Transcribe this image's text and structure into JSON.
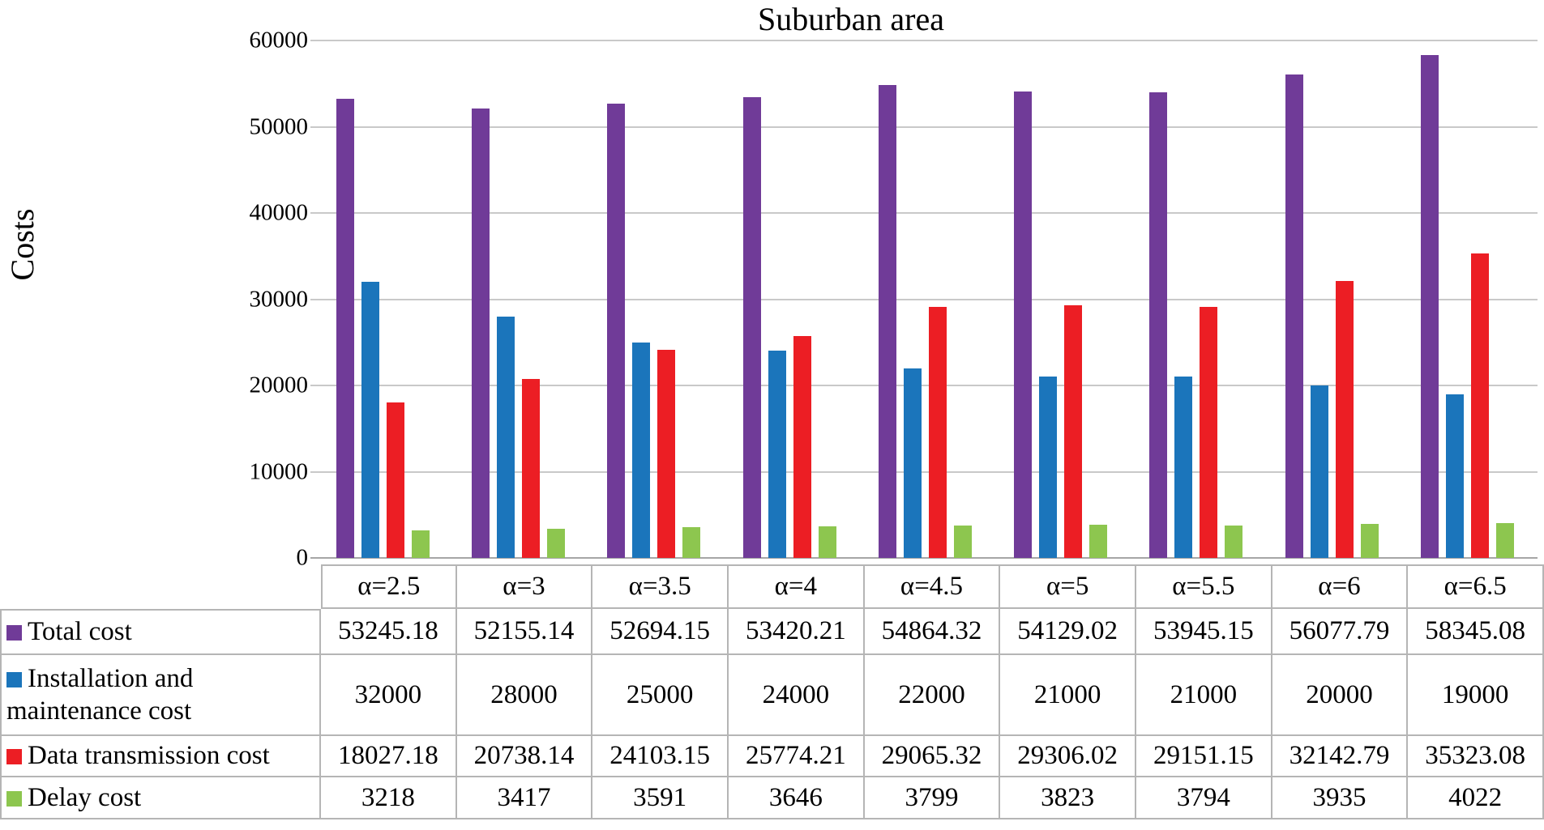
{
  "chart_data": {
    "type": "bar",
    "title": "Suburban area",
    "ylabel": "Costs",
    "xlabel": "",
    "ylim": [
      0,
      60000
    ],
    "ytick_step": 10000,
    "ytick_labels": [
      "0",
      "10000",
      "20000",
      "30000",
      "40000",
      "50000",
      "60000"
    ],
    "grid": true,
    "legend_position": "table-left",
    "categories": [
      "α=2.5",
      "α=3",
      "α=3.5",
      "α=4",
      "α=4.5",
      "α=5",
      "α=5.5",
      "α=6",
      "α=6.5"
    ],
    "series": [
      {
        "name": "Total cost",
        "color": "#703B98",
        "values": [
          "53245.18",
          "52155.14",
          "52694.15",
          "53420.21",
          "54864.32",
          "54129.02",
          "53945.15",
          "56077.79",
          "58345.08"
        ]
      },
      {
        "name": "Installation and maintenance cost",
        "color": "#1B75BB",
        "values": [
          "32000",
          "28000",
          "25000",
          "24000",
          "22000",
          "21000",
          "21000",
          "20000",
          "19000"
        ]
      },
      {
        "name": "Data transmission cost",
        "color": "#EC1E24",
        "values": [
          "18027.18",
          "20738.14",
          "24103.15",
          "25774.21",
          "29065.32",
          "29306.02",
          "29151.15",
          "32142.79",
          "35323.08"
        ]
      },
      {
        "name": "Delay cost",
        "color": "#8DC64F",
        "values": [
          "3218",
          "3417",
          "3591",
          "3646",
          "3799",
          "3823",
          "3794",
          "3935",
          "4022"
        ]
      }
    ]
  }
}
